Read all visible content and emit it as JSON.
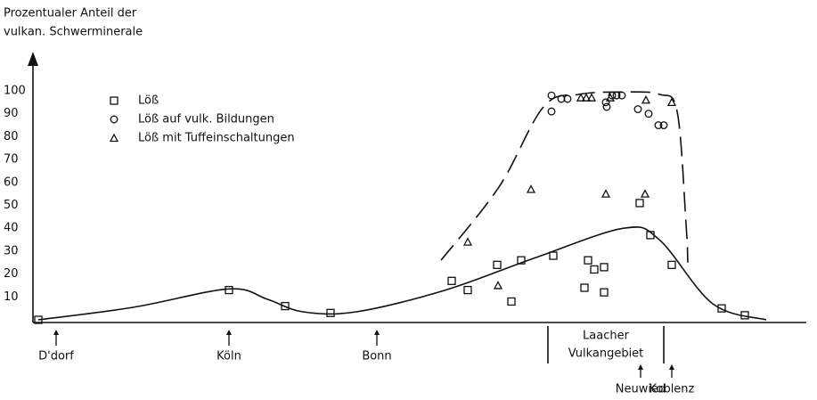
{
  "chart_data": {
    "type": "scatter",
    "title": "Prozentualer Anteil der",
    "subtitle": "vulkan. Schwerminerale",
    "xlim": [
      0,
      917
    ],
    "ylim": [
      0,
      110
    ],
    "yticks": [
      10,
      20,
      30,
      40,
      50,
      60,
      70,
      80,
      90,
      100
    ],
    "series": [
      {
        "name": "Löß",
        "marker": "square",
        "color": "#111",
        "x": [
          43,
          257,
          320,
          371,
          507,
          525,
          558,
          574,
          585,
          621,
          660,
          667,
          678,
          656,
          678,
          718,
          730,
          754,
          810,
          836
        ],
        "values": [
          0,
          13,
          6,
          3,
          17,
          13,
          24,
          8,
          26,
          28,
          26,
          22,
          23,
          14,
          12,
          51,
          37,
          24,
          5,
          2
        ]
      },
      {
        "name": "Löß auf vulk. Bildungen",
        "marker": "circle",
        "color": "#111",
        "x": [
          619,
          619,
          630,
          637,
          680,
          681,
          687,
          692,
          698,
          716,
          728,
          739,
          745
        ],
        "values": [
          98,
          91,
          96.5,
          96.5,
          95,
          93,
          98,
          98,
          98,
          92,
          90,
          85,
          85
        ]
      },
      {
        "name": "Löß mit Tuffeinschaltungen",
        "marker": "triangle",
        "color": "#111",
        "x": [
          525,
          559,
          596,
          652,
          658,
          664,
          680,
          685,
          724,
          725,
          754
        ],
        "values": [
          34,
          15,
          57,
          97,
          97,
          97,
          55,
          97,
          55,
          96,
          95
        ]
      },
      {
        "marker": "none",
        "line": "solid",
        "color": "#111",
        "x": [
          43,
          150,
          257,
          300,
          340,
          400,
          500,
          600,
          700,
          740,
          800,
          860
        ],
        "values": [
          0,
          5.5,
          13.5,
          9,
          3.5,
          3.5,
          13,
          27,
          40,
          35,
          7,
          0
        ]
      },
      {
        "marker": "none",
        "line": "dashed",
        "color": "#111",
        "x": [
          495,
          560,
          610,
          650,
          700,
          740,
          760,
          770,
          772
        ],
        "values": [
          26,
          58,
          93,
          98.5,
          99.5,
          98.5,
          91,
          42,
          25
        ]
      }
    ],
    "annotations": [
      {
        "text": "D'dorf",
        "x": 63
      },
      {
        "text": "Köln",
        "x": 257
      },
      {
        "text": "Bonn",
        "x": 423
      },
      {
        "text": "Laacher",
        "text2": "Vulkangebiet",
        "x": 680,
        "bounds": [
          615,
          745
        ]
      },
      {
        "text": "Neuwied",
        "x": 719,
        "below": true
      },
      {
        "text": "Koblenz",
        "x": 754,
        "below": true
      }
    ]
  }
}
